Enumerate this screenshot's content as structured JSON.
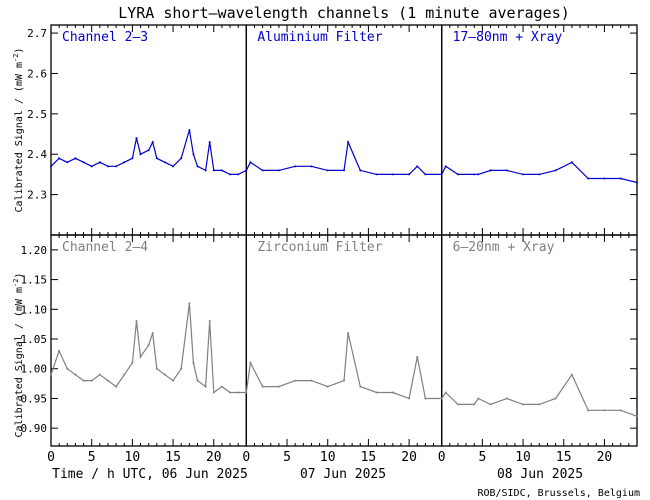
{
  "title": "LYRA short–wavelength channels (1 minute averages)",
  "credit": "ROB/SIDC, Brussels, Belgium",
  "ylabel": "Calibrated Signal / (mW m",
  "ylabel_sup": "-2",
  "ylabel_end": ")",
  "date_labels": [
    "Time / h UTC, 06 Jun 2025",
    "07 Jun 2025",
    "08 Jun 2025"
  ],
  "x_ticks": [
    "0",
    "5",
    "10",
    "15",
    "20"
  ],
  "colors": {
    "top": "#0000cc",
    "bottom": "#808080",
    "axis": "#000000"
  },
  "chart_data": [
    {
      "type": "scatter",
      "row": "top",
      "ylim": [
        2.2,
        2.72
      ],
      "y_ticks": [
        "2.3",
        "2.4",
        "2.5",
        "2.6",
        "2.7"
      ],
      "xlim": [
        0,
        72
      ],
      "panels": [
        "Channel 2–3",
        "Aluminium Filter",
        "17–80nm + Xray"
      ],
      "series": [
        {
          "x": [
            0,
            1,
            2,
            3,
            4,
            5,
            6,
            7,
            8,
            9,
            10,
            10.5,
            11,
            12,
            12.5,
            13,
            14,
            15,
            16,
            17,
            17.5,
            18,
            19,
            19.5,
            20,
            21,
            22,
            23,
            24,
            24.5,
            26,
            28,
            30,
            32,
            34,
            36,
            36.5,
            38,
            40,
            42,
            44,
            45,
            46,
            48,
            48.5,
            50,
            52,
            52.5,
            54,
            56,
            58,
            60,
            62,
            64,
            66,
            68,
            70,
            72
          ],
          "y": [
            2.37,
            2.39,
            2.38,
            2.39,
            2.38,
            2.37,
            2.38,
            2.37,
            2.37,
            2.38,
            2.39,
            2.44,
            2.4,
            2.41,
            2.43,
            2.39,
            2.38,
            2.37,
            2.39,
            2.46,
            2.4,
            2.37,
            2.36,
            2.43,
            2.36,
            2.36,
            2.35,
            2.35,
            2.36,
            2.38,
            2.36,
            2.36,
            2.37,
            2.37,
            2.36,
            2.36,
            2.43,
            2.36,
            2.35,
            2.35,
            2.35,
            2.37,
            2.35,
            2.35,
            2.37,
            2.35,
            2.35,
            2.35,
            2.36,
            2.36,
            2.35,
            2.35,
            2.36,
            2.38,
            2.34,
            2.34,
            2.34,
            2.33
          ]
        }
      ]
    },
    {
      "type": "scatter",
      "row": "bottom",
      "ylim": [
        0.87,
        1.225
      ],
      "y_ticks": [
        "0.90",
        "0.95",
        "1.00",
        "1.05",
        "1.10",
        "1.15",
        "1.20"
      ],
      "xlim": [
        0,
        72
      ],
      "panels": [
        "Channel 2–4",
        "Zirconium Filter",
        "6–20nm + Xray"
      ],
      "series": [
        {
          "x": [
            0,
            1,
            2,
            3,
            4,
            5,
            6,
            7,
            8,
            9,
            10,
            10.5,
            11,
            12,
            12.5,
            13,
            14,
            15,
            16,
            17,
            17.5,
            18,
            19,
            19.5,
            20,
            21,
            22,
            23,
            24,
            24.5,
            26,
            28,
            30,
            32,
            34,
            36,
            36.5,
            38,
            40,
            42,
            44,
            45,
            46,
            48,
            48.5,
            50,
            52,
            52.5,
            54,
            56,
            58,
            60,
            62,
            64,
            66,
            68,
            70,
            72
          ],
          "y": [
            0.99,
            1.03,
            1.0,
            0.99,
            0.98,
            0.98,
            0.99,
            0.98,
            0.97,
            0.99,
            1.01,
            1.08,
            1.02,
            1.04,
            1.06,
            1.0,
            0.99,
            0.98,
            1.0,
            1.11,
            1.01,
            0.98,
            0.97,
            1.08,
            0.96,
            0.97,
            0.96,
            0.96,
            0.96,
            1.01,
            0.97,
            0.97,
            0.98,
            0.98,
            0.97,
            0.98,
            1.06,
            0.97,
            0.96,
            0.96,
            0.95,
            1.02,
            0.95,
            0.95,
            0.96,
            0.94,
            0.94,
            0.95,
            0.94,
            0.95,
            0.94,
            0.94,
            0.95,
            0.99,
            0.93,
            0.93,
            0.93,
            0.92
          ]
        }
      ]
    }
  ]
}
